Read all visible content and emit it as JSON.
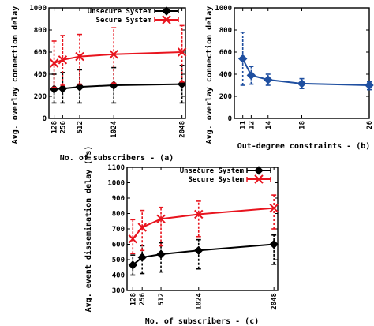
{
  "chart_data": [
    {
      "id": "a",
      "type": "line",
      "xlabel": "No. of subscribers - (a)",
      "ylabel": "Avg. overlay connection delay (ms)",
      "ylim": [
        0,
        1000
      ],
      "yticks": [
        0,
        200,
        400,
        600,
        800,
        1000
      ],
      "xlim": [
        50,
        2100
      ],
      "xticks": [
        128,
        256,
        512,
        1024,
        2048
      ],
      "legend": "top-right",
      "series": [
        {
          "name": "Unsecure System",
          "color": "#000000",
          "marker": "diamond",
          "x": [
            128,
            256,
            512,
            1024,
            2048
          ],
          "y": [
            265,
            270,
            285,
            300,
            310
          ],
          "err_low": [
            140,
            140,
            140,
            140,
            140
          ],
          "err_high": [
            400,
            415,
            440,
            460,
            480
          ]
        },
        {
          "name": "Secure System",
          "color": "#e8141e",
          "marker": "x",
          "x": [
            128,
            256,
            512,
            1024,
            2048
          ],
          "y": [
            500,
            530,
            560,
            580,
            600
          ],
          "err_low": [
            280,
            300,
            310,
            320,
            330
          ],
          "err_high": [
            700,
            750,
            760,
            820,
            840
          ]
        }
      ]
    },
    {
      "id": "b",
      "type": "line",
      "xlabel": "Out-degree constraints - (b)",
      "ylabel": "Avg. overlay connection delay (ms)",
      "ylim": [
        0,
        1000
      ],
      "yticks": [
        0,
        200,
        400,
        600,
        800,
        1000
      ],
      "xlim": [
        10,
        26
      ],
      "xticks": [
        11,
        12,
        14,
        18,
        26
      ],
      "series": [
        {
          "color": "#1f4fa0",
          "marker": "diamond",
          "x": [
            11,
            12,
            14,
            18,
            26
          ],
          "y": [
            540,
            390,
            350,
            315,
            300
          ],
          "err_low": [
            300,
            310,
            300,
            270,
            260
          ],
          "err_high": [
            780,
            470,
            400,
            360,
            330
          ]
        }
      ]
    },
    {
      "id": "c",
      "type": "line",
      "xlabel": "No. of subscribers - (c)",
      "ylabel": "Avg. event dissemination delay (ms)",
      "ylim": [
        300,
        1100
      ],
      "yticks": [
        300,
        400,
        500,
        600,
        700,
        800,
        900,
        1000,
        1100
      ],
      "xlim": [
        50,
        2100
      ],
      "xticks": [
        128,
        256,
        512,
        1024,
        2048
      ],
      "legend": "top-right",
      "series": [
        {
          "name": "Unsecure System",
          "color": "#000000",
          "marker": "diamond",
          "x": [
            128,
            256,
            512,
            1024,
            2048
          ],
          "y": [
            465,
            515,
            535,
            560,
            600
          ],
          "err_low": [
            400,
            410,
            420,
            440,
            470
          ],
          "err_high": [
            530,
            590,
            610,
            630,
            660
          ]
        },
        {
          "name": "Secure System",
          "color": "#e8141e",
          "marker": "x",
          "x": [
            128,
            256,
            512,
            1024,
            2048
          ],
          "y": [
            635,
            710,
            765,
            795,
            835
          ],
          "err_low": [
            540,
            560,
            590,
            650,
            700
          ],
          "err_high": [
            760,
            820,
            840,
            880,
            920
          ]
        }
      ]
    }
  ]
}
